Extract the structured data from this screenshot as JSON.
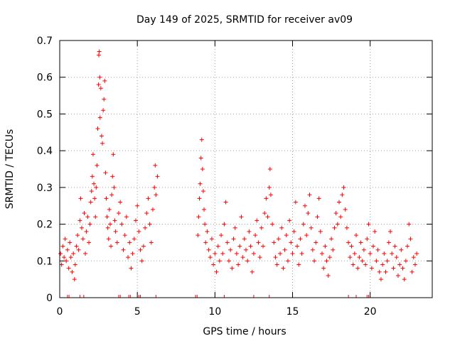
{
  "chart_data": {
    "type": "scatter",
    "title": "Day 149 of 2025, SRMTID for receiver av09",
    "xlabel": "GPS time / hours",
    "ylabel": "SRMTID / TECUs",
    "xlim": [
      0,
      24
    ],
    "ylim": [
      0,
      0.7
    ],
    "xticks": [
      0,
      5,
      10,
      15,
      20
    ],
    "xtick_labels": [
      "0",
      "5",
      "10",
      "15",
      "20"
    ],
    "yticks": [
      0,
      0.1,
      0.2,
      0.3,
      0.4,
      0.5,
      0.6,
      0.7
    ],
    "ytick_labels": [
      "0",
      "0.1",
      "0.2",
      "0.3",
      "0.4",
      "0.5",
      "0.6",
      "0.7"
    ],
    "grid": true,
    "marker": "+",
    "color": "#ff0000",
    "series": [
      {
        "name": "SRMTID",
        "points": [
          [
            0.05,
            0.12
          ],
          [
            0.12,
            0.09
          ],
          [
            0.2,
            0.14
          ],
          [
            0.28,
            0.11
          ],
          [
            0.35,
            0.16
          ],
          [
            0.42,
            0.1
          ],
          [
            0.5,
            0.13
          ],
          [
            0.58,
            0.08
          ],
          [
            0.65,
            0.15
          ],
          [
            0.72,
            0.11
          ],
          [
            0.8,
            0.07
          ],
          [
            0.88,
            0.12
          ],
          [
            0.95,
            0.05
          ],
          [
            1.0,
            0.09
          ],
          [
            1.08,
            0.14
          ],
          [
            1.15,
            0.17
          ],
          [
            1.22,
            0.13
          ],
          [
            1.3,
            0.21
          ],
          [
            1.35,
            0.27
          ],
          [
            1.42,
            0.19
          ],
          [
            1.5,
            0.16
          ],
          [
            1.58,
            0.23
          ],
          [
            1.65,
            0.12
          ],
          [
            1.72,
            0.18
          ],
          [
            1.8,
            0.22
          ],
          [
            1.88,
            0.15
          ],
          [
            1.95,
            0.2
          ],
          [
            2.0,
            0.26
          ],
          [
            2.05,
            0.29
          ],
          [
            2.1,
            0.33
          ],
          [
            2.15,
            0.39
          ],
          [
            2.2,
            0.31
          ],
          [
            2.25,
            0.27
          ],
          [
            2.3,
            0.22
          ],
          [
            2.35,
            0.3
          ],
          [
            2.4,
            0.36
          ],
          [
            2.45,
            0.46
          ],
          [
            2.5,
            0.58
          ],
          [
            2.52,
            0.66
          ],
          [
            2.55,
            0.67
          ],
          [
            2.58,
            0.6
          ],
          [
            2.6,
            0.49
          ],
          [
            2.65,
            0.57
          ],
          [
            2.7,
            0.44
          ],
          [
            2.75,
            0.42
          ],
          [
            2.8,
            0.51
          ],
          [
            2.85,
            0.54
          ],
          [
            2.9,
            0.59
          ],
          [
            2.95,
            0.34
          ],
          [
            3.0,
            0.27
          ],
          [
            3.05,
            0.22
          ],
          [
            3.1,
            0.19
          ],
          [
            3.15,
            0.16
          ],
          [
            3.2,
            0.24
          ],
          [
            3.25,
            0.2
          ],
          [
            3.3,
            0.14
          ],
          [
            3.35,
            0.28
          ],
          [
            3.4,
            0.33
          ],
          [
            3.45,
            0.39
          ],
          [
            3.5,
            0.3
          ],
          [
            3.55,
            0.21
          ],
          [
            3.6,
            0.18
          ],
          [
            3.7,
            0.15
          ],
          [
            3.8,
            0.23
          ],
          [
            3.9,
            0.26
          ],
          [
            4.0,
            0.2
          ],
          [
            4.1,
            0.13
          ],
          [
            4.2,
            0.17
          ],
          [
            4.3,
            0.22
          ],
          [
            4.4,
            0.11
          ],
          [
            4.5,
            0.15
          ],
          [
            4.6,
            0.08
          ],
          [
            4.7,
            0.12
          ],
          [
            4.8,
            0.16
          ],
          [
            4.9,
            0.21
          ],
          [
            5.0,
            0.25
          ],
          [
            5.1,
            0.18
          ],
          [
            5.2,
            0.13
          ],
          [
            5.3,
            0.1
          ],
          [
            5.4,
            0.14
          ],
          [
            5.5,
            0.19
          ],
          [
            5.6,
            0.23
          ],
          [
            5.7,
            0.27
          ],
          [
            5.8,
            0.2
          ],
          [
            5.9,
            0.15
          ],
          [
            6.0,
            0.24
          ],
          [
            6.1,
            0.3
          ],
          [
            6.15,
            0.36
          ],
          [
            6.2,
            0.28
          ],
          [
            6.3,
            0.33
          ],
          [
            8.9,
            0.17
          ],
          [
            8.95,
            0.22
          ],
          [
            9.0,
            0.27
          ],
          [
            9.05,
            0.31
          ],
          [
            9.1,
            0.38
          ],
          [
            9.15,
            0.43
          ],
          [
            9.2,
            0.35
          ],
          [
            9.25,
            0.29
          ],
          [
            9.3,
            0.24
          ],
          [
            9.35,
            0.2
          ],
          [
            9.4,
            0.15
          ],
          [
            9.5,
            0.18
          ],
          [
            9.6,
            0.13
          ],
          [
            9.7,
            0.11
          ],
          [
            9.8,
            0.16
          ],
          [
            9.9,
            0.09
          ],
          [
            10.0,
            0.12
          ],
          [
            10.1,
            0.07
          ],
          [
            10.2,
            0.14
          ],
          [
            10.3,
            0.1
          ],
          [
            10.4,
            0.17
          ],
          [
            10.5,
            0.12
          ],
          [
            10.6,
            0.2
          ],
          [
            10.7,
            0.26
          ],
          [
            10.8,
            0.15
          ],
          [
            10.9,
            0.1
          ],
          [
            11.0,
            0.13
          ],
          [
            11.1,
            0.08
          ],
          [
            11.2,
            0.16
          ],
          [
            11.3,
            0.19
          ],
          [
            11.4,
            0.12
          ],
          [
            11.5,
            0.09
          ],
          [
            11.6,
            0.14
          ],
          [
            11.7,
            0.22
          ],
          [
            11.8,
            0.11
          ],
          [
            11.9,
            0.16
          ],
          [
            12.0,
            0.13
          ],
          [
            12.1,
            0.1
          ],
          [
            12.2,
            0.18
          ],
          [
            12.3,
            0.14
          ],
          [
            12.4,
            0.07
          ],
          [
            12.5,
            0.12
          ],
          [
            12.6,
            0.17
          ],
          [
            12.7,
            0.21
          ],
          [
            12.8,
            0.15
          ],
          [
            12.9,
            0.11
          ],
          [
            13.0,
            0.19
          ],
          [
            13.1,
            0.14
          ],
          [
            13.2,
            0.23
          ],
          [
            13.3,
            0.27
          ],
          [
            13.4,
            0.22
          ],
          [
            13.5,
            0.3
          ],
          [
            13.55,
            0.35
          ],
          [
            13.6,
            0.28
          ],
          [
            13.7,
            0.2
          ],
          [
            13.8,
            0.15
          ],
          [
            13.9,
            0.11
          ],
          [
            14.0,
            0.09
          ],
          [
            14.1,
            0.16
          ],
          [
            14.2,
            0.12
          ],
          [
            14.3,
            0.19
          ],
          [
            14.4,
            0.08
          ],
          [
            14.5,
            0.13
          ],
          [
            14.6,
            0.17
          ],
          [
            14.7,
            0.1
          ],
          [
            14.8,
            0.21
          ],
          [
            14.9,
            0.15
          ],
          [
            15.0,
            0.12
          ],
          [
            15.1,
            0.18
          ],
          [
            15.2,
            0.26
          ],
          [
            15.3,
            0.14
          ],
          [
            15.4,
            0.09
          ],
          [
            15.5,
            0.16
          ],
          [
            15.6,
            0.12
          ],
          [
            15.7,
            0.2
          ],
          [
            15.8,
            0.25
          ],
          [
            15.9,
            0.17
          ],
          [
            16.0,
            0.23
          ],
          [
            16.1,
            0.28
          ],
          [
            16.2,
            0.19
          ],
          [
            16.3,
            0.13
          ],
          [
            16.4,
            0.1
          ],
          [
            16.5,
            0.15
          ],
          [
            16.6,
            0.22
          ],
          [
            16.7,
            0.27
          ],
          [
            16.8,
            0.18
          ],
          [
            16.9,
            0.12
          ],
          [
            17.0,
            0.08
          ],
          [
            17.1,
            0.14
          ],
          [
            17.2,
            0.1
          ],
          [
            17.3,
            0.06
          ],
          [
            17.4,
            0.11
          ],
          [
            17.5,
            0.16
          ],
          [
            17.6,
            0.13
          ],
          [
            17.7,
            0.19
          ],
          [
            17.8,
            0.23
          ],
          [
            17.9,
            0.2
          ],
          [
            18.0,
            0.26
          ],
          [
            18.1,
            0.22
          ],
          [
            18.2,
            0.28
          ],
          [
            18.3,
            0.3
          ],
          [
            18.4,
            0.24
          ],
          [
            18.5,
            0.19
          ],
          [
            18.6,
            0.15
          ],
          [
            18.7,
            0.11
          ],
          [
            18.8,
            0.14
          ],
          [
            18.9,
            0.09
          ],
          [
            19.0,
            0.12
          ],
          [
            19.1,
            0.17
          ],
          [
            19.2,
            0.08
          ],
          [
            19.3,
            0.11
          ],
          [
            19.4,
            0.15
          ],
          [
            19.5,
            0.1
          ],
          [
            19.6,
            0.13
          ],
          [
            19.7,
            0.09
          ],
          [
            19.8,
            0.16
          ],
          [
            19.9,
            0.2
          ],
          [
            20.0,
            0.12
          ],
          [
            20.1,
            0.08
          ],
          [
            20.2,
            0.14
          ],
          [
            20.3,
            0.18
          ],
          [
            20.4,
            0.1
          ],
          [
            20.5,
            0.13
          ],
          [
            20.6,
            0.07
          ],
          [
            20.7,
            0.05
          ],
          [
            20.8,
            0.09
          ],
          [
            20.9,
            0.12
          ],
          [
            21.0,
            0.07
          ],
          [
            21.1,
            0.1
          ],
          [
            21.2,
            0.15
          ],
          [
            21.3,
            0.18
          ],
          [
            21.4,
            0.12
          ],
          [
            21.5,
            0.08
          ],
          [
            21.6,
            0.14
          ],
          [
            21.7,
            0.11
          ],
          [
            21.8,
            0.06
          ],
          [
            21.9,
            0.09
          ],
          [
            22.0,
            0.13
          ],
          [
            22.1,
            0.08
          ],
          [
            22.2,
            0.05
          ],
          [
            22.3,
            0.1
          ],
          [
            22.4,
            0.14
          ],
          [
            22.5,
            0.2
          ],
          [
            22.6,
            0.16
          ],
          [
            22.7,
            0.07
          ],
          [
            22.8,
            0.11
          ],
          [
            22.9,
            0.09
          ],
          [
            23.0,
            0.12
          ]
        ]
      }
    ],
    "baseline_markers_x": [
      0.5,
      0.6,
      1.3,
      1.55,
      3.8,
      3.9,
      4.45,
      4.55,
      5.1,
      5.2,
      6.2,
      8.75,
      8.85,
      10.6,
      12.5,
      13.5,
      18.6,
      19.1,
      19.8,
      19.9
    ]
  }
}
